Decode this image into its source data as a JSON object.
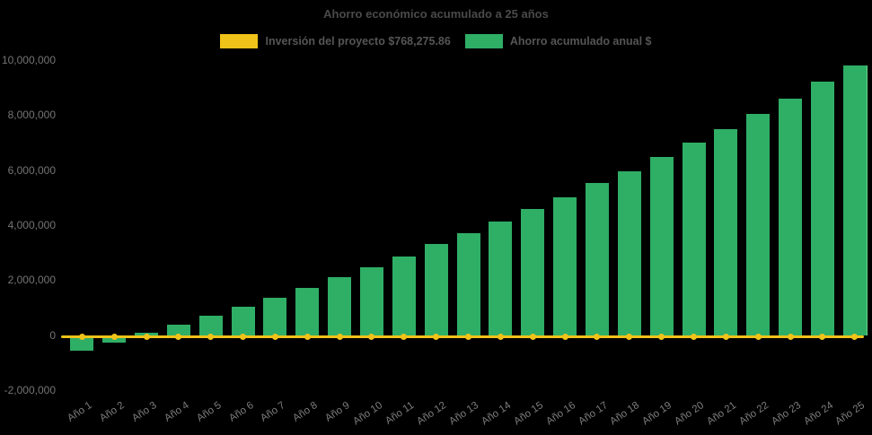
{
  "title": "Ahorro económico acumulado a 25 años",
  "background_color": "#000000",
  "legend": {
    "position": "top",
    "items": [
      {
        "label": "Inversión del proyecto $768,275.86",
        "color": "#EFC319"
      },
      {
        "label": "Ahorro acumulado anual $",
        "color": "#2FAE66"
      }
    ]
  },
  "chart_data": {
    "type": "bar",
    "subtype": "bar-line-combo",
    "title": "Ahorro económico acumulado a 25 años",
    "categories": [
      "Año 1",
      "Año 2",
      "Año 3",
      "Año 4",
      "Año 5",
      "Año 6",
      "Año 7",
      "Año 8",
      "Año 9",
      "Año 10",
      "Año 11",
      "Año 12",
      "Año 13",
      "Año 14",
      "Año 15",
      "Año 16",
      "Año 17",
      "Año 18",
      "Año 19",
      "Año 20",
      "Año 21",
      "Año 22",
      "Año 23",
      "Año 24",
      "Año 25"
    ],
    "series": [
      {
        "name": "Ahorro acumulado anual $",
        "type": "bar",
        "color": "#2FAE66",
        "values": [
          -570000,
          -260000,
          75000,
          380000,
          705000,
          1030000,
          1360000,
          1715000,
          2100000,
          2480000,
          2850000,
          3300000,
          3720000,
          4130000,
          4590000,
          5000000,
          5530000,
          5970000,
          6480000,
          7000000,
          7480000,
          8050000,
          8610000,
          9210000,
          9790000
        ]
      },
      {
        "name": "Inversión del proyecto $768,275.86",
        "type": "line",
        "color": "#EFC319",
        "marker": "circle",
        "values": [
          0,
          0,
          0,
          0,
          0,
          0,
          0,
          0,
          0,
          0,
          0,
          0,
          0,
          0,
          0,
          0,
          0,
          0,
          0,
          0,
          0,
          0,
          0,
          0,
          0
        ]
      }
    ],
    "ylim": [
      -2000000,
      10000000
    ],
    "ytick_step": 2000000,
    "y_tick_values_top_to_bottom": [
      10000000,
      8000000,
      6000000,
      4000000,
      2000000,
      0,
      -2000000
    ],
    "y_tick_labels_top_to_bottom": [
      "10,000,000",
      "8,000,000",
      "6,000,000",
      "4,000,000",
      "2,000,000",
      "0",
      "-2,000,000"
    ],
    "xlabel": "",
    "ylabel": "",
    "grid": false,
    "legend_position": "top",
    "x_label_rotation_deg": -34
  }
}
